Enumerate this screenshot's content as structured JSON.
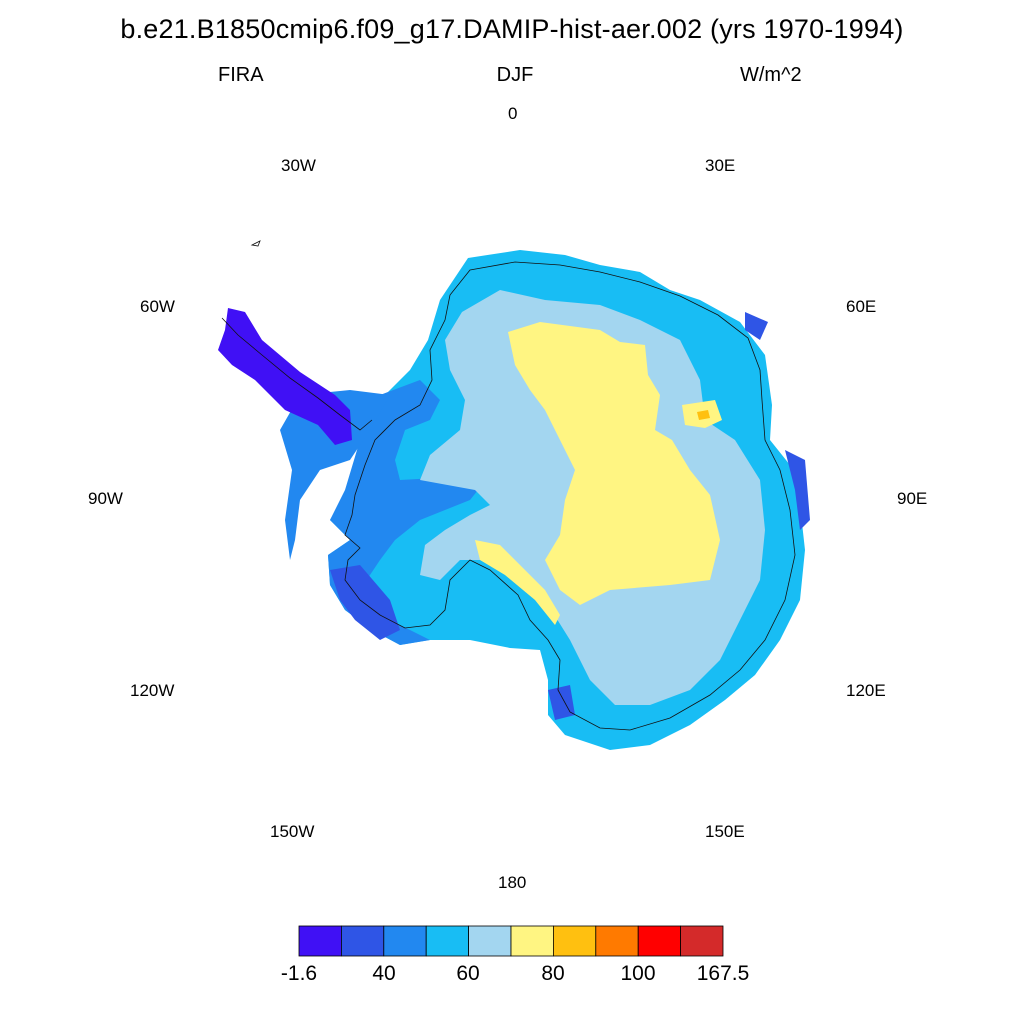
{
  "header": {
    "title": "b.e21.B1850cmip6.f09_g17.DAMIP-hist-aer.002 (yrs 1970-1994)",
    "variable": "FIRA",
    "season": "DJF",
    "units": "W/m^2"
  },
  "longitude_labels": {
    "lon_0": "0",
    "lon_30e": "30E",
    "lon_60e": "60E",
    "lon_90e": "90E",
    "lon_120e": "120E",
    "lon_150e": "150E",
    "lon_180": "180",
    "lon_150w": "150W",
    "lon_120w": "120W",
    "lon_90w": "90W",
    "lon_60w": "60W",
    "lon_30w": "30W"
  },
  "colorbar": {
    "colors": [
      "#4010f5",
      "#2f55e6",
      "#2288f0",
      "#18bdf4",
      "#a3d6f0",
      "#fff582",
      "#ffc010",
      "#ff7a00",
      "#ff0000",
      "#d42a2a"
    ],
    "labels": {
      "l0": "-1.6",
      "l1": "40",
      "l2": "60",
      "l3": "80",
      "l4": "100",
      "l5": "167.5"
    }
  },
  "map": {
    "projection": "south polar stereographic",
    "level_colors": {
      "coast": "#18bdf4",
      "margin": "#2288f0",
      "peninsula": "#4010f5",
      "dark_edge": "#2f55e6",
      "plateau_low": "#a3d6f0",
      "plateau_high": "#fff582",
      "hotspot": "#ffc010"
    }
  }
}
